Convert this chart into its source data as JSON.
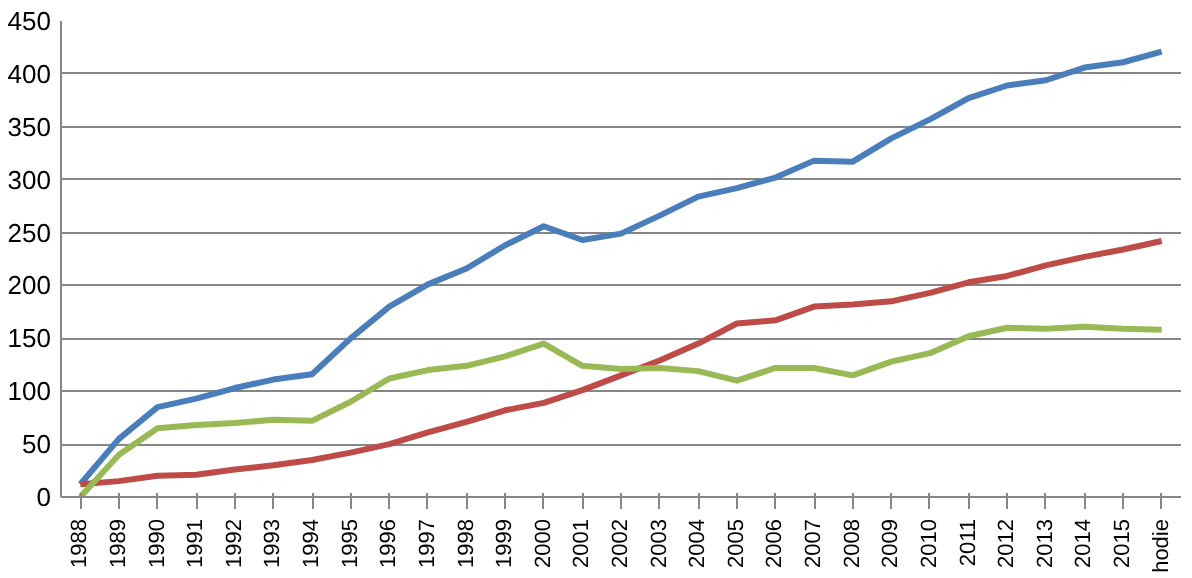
{
  "chart_data": {
    "type": "line",
    "categories": [
      "1988",
      "1989",
      "1990",
      "1991",
      "1992",
      "1993",
      "1994",
      "1995",
      "1996",
      "1997",
      "1998",
      "1999",
      "2000",
      "2001",
      "2002",
      "2003",
      "2004",
      "2005",
      "2006",
      "2007",
      "2008",
      "2009",
      "2010",
      "2011",
      "2012",
      "2013",
      "2014",
      "2015",
      "hodie"
    ],
    "series": [
      {
        "color": "#4a7ebb",
        "values": [
          12,
          55,
          85,
          93,
          103,
          111,
          116,
          150,
          180,
          201,
          216,
          238,
          256,
          243,
          249,
          266,
          284,
          292,
          302,
          318,
          317,
          339,
          357,
          377,
          389,
          394,
          406,
          411,
          421
        ]
      },
      {
        "color": "#be4b48",
        "values": [
          12,
          15,
          20,
          21,
          26,
          30,
          35,
          42,
          50,
          61,
          71,
          82,
          89,
          101,
          115,
          129,
          145,
          164,
          167,
          180,
          182,
          185,
          193,
          203,
          209,
          219,
          227,
          234,
          242
        ]
      },
      {
        "color": "#98b954",
        "values": [
          0,
          40,
          65,
          68,
          70,
          73,
          72,
          90,
          112,
          120,
          124,
          133,
          145,
          124,
          121,
          122,
          119,
          110,
          122,
          122,
          115,
          128,
          136,
          152,
          160,
          159,
          161,
          159,
          158
        ]
      }
    ],
    "ylim": [
      0,
      450
    ],
    "yticks": [
      0,
      50,
      100,
      150,
      200,
      250,
      300,
      350,
      400,
      450
    ],
    "grid": "y",
    "marker": "none",
    "line_style": "solid"
  }
}
